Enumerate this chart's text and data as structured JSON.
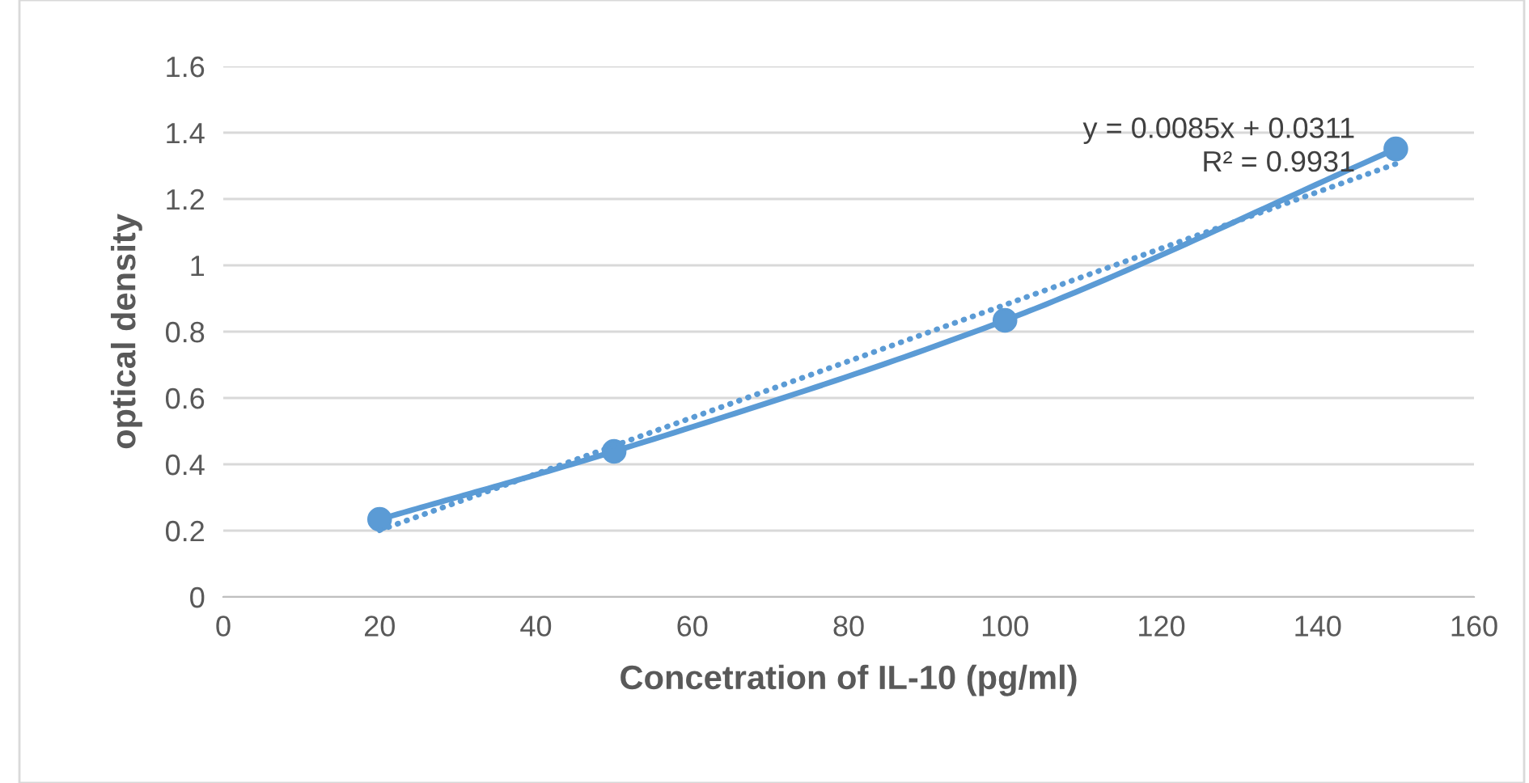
{
  "chart_data": {
    "type": "line",
    "xlabel": "Concetration of IL-10 (pg/ml)",
    "ylabel": "optical density",
    "xlim": [
      0,
      160
    ],
    "xticks": [
      0,
      20,
      40,
      60,
      80,
      100,
      120,
      140,
      160
    ],
    "ylim": [
      0,
      1.6
    ],
    "yticks": [
      0,
      0.2,
      0.4,
      0.6,
      0.8,
      1,
      1.2,
      1.4,
      1.6
    ],
    "grid": "y",
    "legend": false,
    "series": [
      {
        "marker": "circle",
        "line_style": "solid",
        "color": "#5b9bd5",
        "x": [
          20,
          50,
          100,
          150
        ],
        "values": [
          0.234,
          0.439,
          0.834,
          1.351
        ]
      },
      {
        "type": "line",
        "marker": "none",
        "line_style": "dotted",
        "color": "#5b9bd5",
        "x": [
          20,
          150
        ],
        "values": [
          0.201,
          1.306
        ]
      }
    ],
    "annotations": [
      "y = 0.0085x + 0.0311\nR² = 0.9931"
    ]
  }
}
